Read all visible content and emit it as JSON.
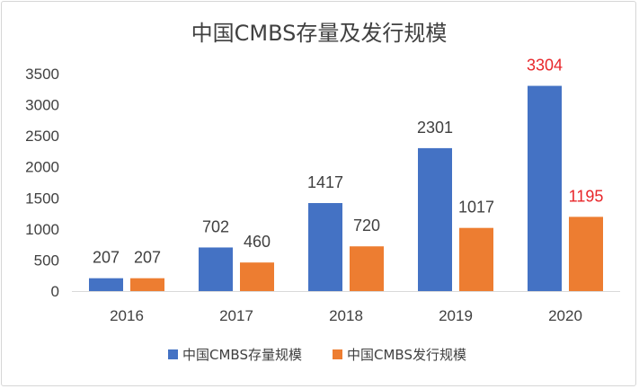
{
  "chart_data": {
    "type": "bar",
    "title": "中国CMBS存量及发行规模",
    "categories": [
      "2016",
      "2017",
      "2018",
      "2019",
      "2020"
    ],
    "series": [
      {
        "name": "中国CMBS存量规模",
        "color": "#4472c4",
        "values": [
          207,
          702,
          1417,
          2301,
          3304
        ]
      },
      {
        "name": "中国CMBS发行规模",
        "color": "#ed7d31",
        "values": [
          207,
          460,
          720,
          1017,
          1195
        ]
      }
    ],
    "ylim": [
      0,
      3500
    ],
    "yticks": [
      "0",
      "500",
      "1000",
      "1500",
      "2000",
      "2500",
      "3000",
      "3500"
    ],
    "grid": false,
    "legend_position": "bottom",
    "highlight_label_color": "#e8262a",
    "highlighted_labels": [
      {
        "series": 0,
        "category": "2020"
      },
      {
        "series": 1,
        "category": "2020"
      }
    ]
  }
}
